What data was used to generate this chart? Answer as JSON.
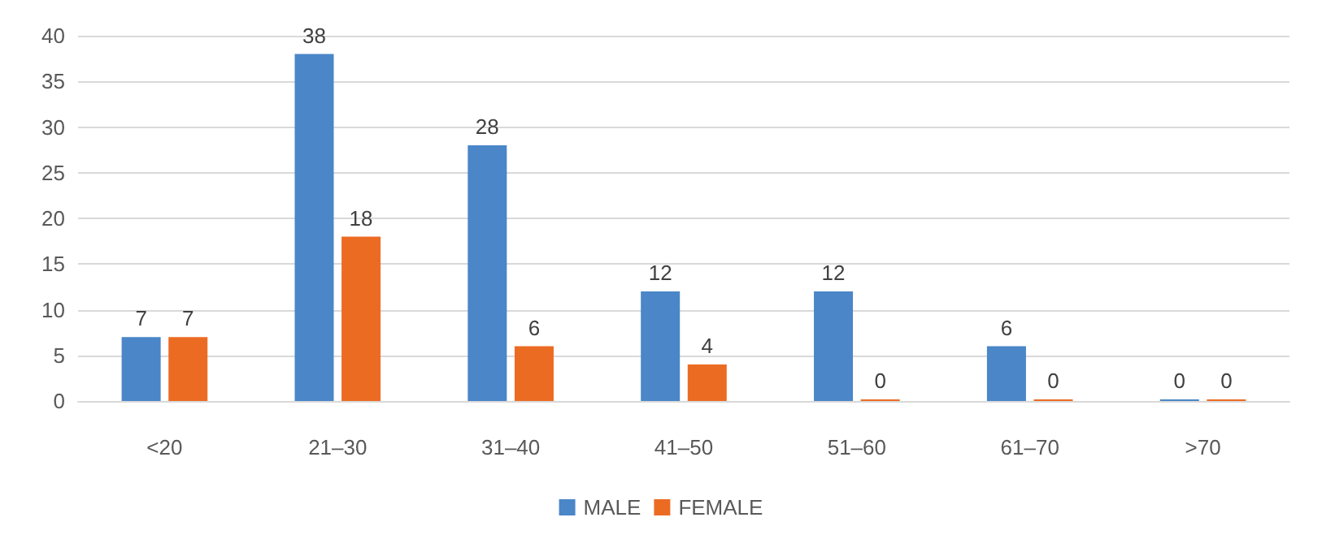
{
  "chart_data": {
    "type": "bar",
    "categories": [
      "<20",
      "21–30",
      "31–40",
      "41–50",
      "51–60",
      "61–70",
      ">70"
    ],
    "series": [
      {
        "name": "MALE",
        "color": "#4a86c8",
        "values": [
          7,
          38,
          28,
          12,
          12,
          6,
          0
        ]
      },
      {
        "name": "FEMALE",
        "color": "#ec6b23",
        "values": [
          7,
          18,
          6,
          4,
          0,
          0,
          0
        ]
      }
    ],
    "ylim": [
      0,
      40
    ],
    "yticks": [
      0,
      5,
      10,
      15,
      20,
      25,
      30,
      35,
      40
    ],
    "grid": "y",
    "legend": "bottom",
    "data_labels": true
  }
}
